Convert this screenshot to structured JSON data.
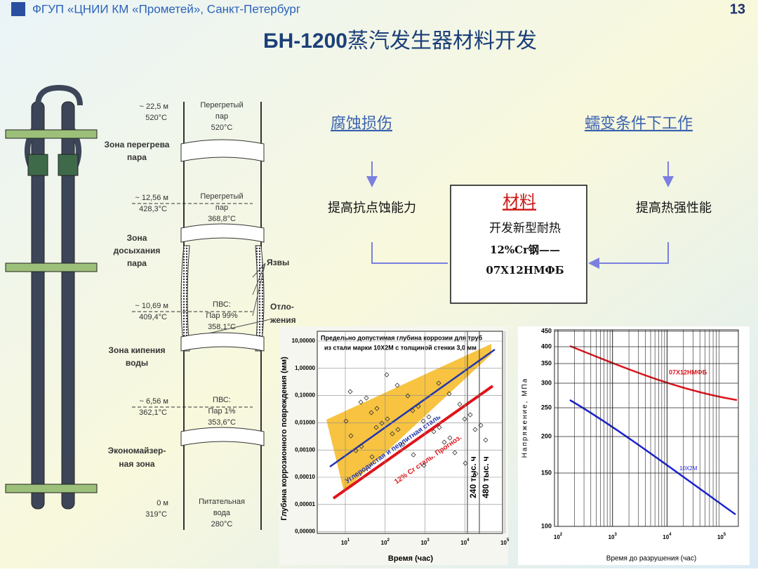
{
  "header": {
    "org": "ФГУП «ЦНИИ КМ «Прометей», Санкт-Петербург",
    "page": "13"
  },
  "title": {
    "bold": "БН-1200",
    "rest": "蒸汽发生器材料开发"
  },
  "flow": {
    "left_head": "腐蚀损伤",
    "right_head": "蠕变条件下工作",
    "left_text": "提高抗点蚀能力",
    "right_text": "提高热强性能",
    "center_title": "材料",
    "center_lines": [
      "开发新型耐热",
      "12%Cr钢——",
      "07Х12НМФБ"
    ]
  },
  "column": {
    "levels": [
      {
        "height": "~ 22,5 м",
        "temp": "520°C",
        "inside": [
          "Перегретый",
          "пар",
          "520°C"
        ]
      },
      {
        "height": "~ 12,56 м",
        "temp": "428,3°C",
        "inside": [
          "Перегретый",
          "пар",
          "368,8°C"
        ]
      },
      {
        "height": "~ 10,69 м",
        "temp": "409,4°C",
        "inside": [
          "ПВС:",
          "Пар 99%",
          "358,1°C"
        ]
      },
      {
        "height": "~ 6,56 м",
        "temp": "362,1°C",
        "inside": [
          "ПВС:",
          "Пар 1%",
          "353,6°C"
        ]
      },
      {
        "height": "0 м",
        "temp": "319°C",
        "inside": [
          "Питательная",
          "вода",
          "280°C"
        ]
      }
    ],
    "zones": [
      [
        "Зона перегрева",
        "пара"
      ],
      [
        "Зона",
        "досыхания",
        "пара"
      ],
      [
        "Зона кипения",
        "воды"
      ],
      [
        "Экономайзер-",
        "ная зона"
      ]
    ],
    "annotations": {
      "ulcers": "Язвы",
      "deposits": [
        "Отло-",
        "жения"
      ]
    }
  },
  "corrosion_chart": {
    "title": [
      "Предельно допустимая глубина коррозии для труб",
      "из стали марки 10Х2М с толщиной стенки 3,0 мм"
    ],
    "y_label": "Глубина коррозионного повреждения (мм)",
    "x_label": "Время (час)",
    "yticks": [
      "10,00000",
      "1,00000",
      "0,10000",
      "0,01000",
      "0,00100",
      "0,00010",
      "0,00001",
      "0,00000"
    ],
    "xticks": [
      {
        "base": "10",
        "exp": "1"
      },
      {
        "base": "10",
        "exp": "2"
      },
      {
        "base": "10",
        "exp": "3"
      },
      {
        "base": "10",
        "exp": "4"
      },
      {
        "base": "10",
        "exp": "5"
      }
    ],
    "band_label": "Углеродистая и перлитная сталь",
    "forecast_label": "12% Cr сталь. Прогноз.",
    "time_marks": [
      "240 тыс. ч",
      "480 тыс. ч"
    ]
  },
  "stress_chart": {
    "y_label": "Напряжение, МПа",
    "x_label": "Время до разрушения (час)",
    "yticks": [
      "450",
      "400",
      "350",
      "300",
      "250",
      "200",
      "150",
      "100"
    ],
    "xticks": [
      {
        "base": "10",
        "exp": "2"
      },
      {
        "base": "10",
        "exp": "3"
      },
      {
        "base": "10",
        "exp": "4"
      },
      {
        "base": "10",
        "exp": "5"
      }
    ],
    "series": [
      "07Х12НМФБ",
      "10Х2М"
    ]
  }
}
